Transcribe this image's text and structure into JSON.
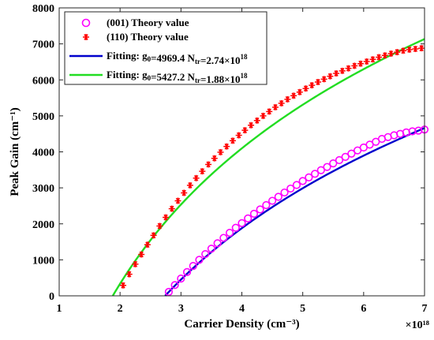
{
  "chart_data": {
    "type": "line",
    "xlabel": "Carrier Density (cm⁻³)",
    "ylabel": "Peak Gain (cm⁻¹)",
    "x_exponent_label": "×10¹⁸",
    "xlim": [
      1,
      7
    ],
    "ylim": [
      0,
      8000
    ],
    "xticks": [
      1,
      2,
      3,
      4,
      5,
      6,
      7
    ],
    "yticks": [
      0,
      1000,
      2000,
      3000,
      4000,
      5000,
      6000,
      7000,
      8000
    ],
    "grid": false,
    "legend_position": "top-left",
    "series": [
      {
        "name": "(001) Theory value",
        "kind": "marker-circle",
        "color": "#ff00ff",
        "x": [
          2.8,
          2.9,
          3.0,
          3.1,
          3.2,
          3.3,
          3.4,
          3.5,
          3.6,
          3.7,
          3.8,
          3.9,
          4.0,
          4.1,
          4.2,
          4.3,
          4.4,
          4.5,
          4.6,
          4.7,
          4.8,
          4.9,
          5.0,
          5.1,
          5.2,
          5.3,
          5.4,
          5.5,
          5.6,
          5.7,
          5.8,
          5.9,
          6.0,
          6.1,
          6.2,
          6.3,
          6.4,
          6.5,
          6.6,
          6.7,
          6.8,
          6.9,
          7.0
        ],
        "y": [
          110,
          300,
          480,
          660,
          830,
          1000,
          1160,
          1310,
          1460,
          1610,
          1750,
          1890,
          2020,
          2150,
          2280,
          2400,
          2520,
          2640,
          2750,
          2870,
          2980,
          3080,
          3190,
          3290,
          3390,
          3490,
          3580,
          3680,
          3770,
          3860,
          3950,
          4040,
          4120,
          4200,
          4280,
          4360,
          4410,
          4460,
          4500,
          4540,
          4570,
          4590,
          4620
        ]
      },
      {
        "name": "(110) Theory value",
        "kind": "marker-star",
        "color": "#ff0000",
        "x": [
          2.05,
          2.15,
          2.25,
          2.35,
          2.45,
          2.55,
          2.65,
          2.75,
          2.85,
          2.95,
          3.05,
          3.15,
          3.25,
          3.35,
          3.45,
          3.55,
          3.65,
          3.75,
          3.85,
          3.95,
          4.05,
          4.15,
          4.25,
          4.35,
          4.45,
          4.55,
          4.65,
          4.75,
          4.85,
          4.95,
          5.05,
          5.15,
          5.25,
          5.35,
          5.45,
          5.55,
          5.65,
          5.75,
          5.85,
          5.95,
          6.05,
          6.15,
          6.25,
          6.35,
          6.45,
          6.55,
          6.65,
          6.75,
          6.85,
          6.95
        ],
        "y": [
          290,
          600,
          880,
          1150,
          1420,
          1680,
          1940,
          2180,
          2420,
          2640,
          2860,
          3070,
          3270,
          3460,
          3650,
          3820,
          3990,
          4150,
          4310,
          4460,
          4600,
          4740,
          4870,
          5000,
          5120,
          5240,
          5350,
          5460,
          5560,
          5660,
          5760,
          5850,
          5940,
          6020,
          6100,
          6180,
          6250,
          6320,
          6390,
          6450,
          6510,
          6570,
          6630,
          6680,
          6730,
          6770,
          6810,
          6840,
          6860,
          6880
        ]
      },
      {
        "name": "Fitting: g₀=4969.4 N_tr=2.74×10¹⁸",
        "kind": "line",
        "color": "#0000cd",
        "g0": 4969.4,
        "Ntr": 2.74,
        "x_range": [
          2.74,
          7
        ]
      },
      {
        "name": "Fitting: g₀=5427.2 N_tr=1.88×10¹⁸",
        "kind": "line",
        "color": "#22dd22",
        "g0": 5427.2,
        "Ntr": 1.88,
        "x_range": [
          1.88,
          7
        ]
      }
    ],
    "legend": [
      {
        "label_main": "(001) Theory value",
        "sym": "circle",
        "color": "#ff00ff"
      },
      {
        "label_main": "(110) Theory value",
        "sym": "star",
        "color": "#ff0000"
      },
      {
        "label_pre": "Fitting: g",
        "sub1": "0",
        "mid": "=4969.4 N",
        "sub2": "tr",
        "post": "=2.74×10",
        "sup": "18",
        "sym": "line",
        "color": "#0000cd"
      },
      {
        "label_pre": "Fitting: g",
        "sub1": "0",
        "mid": "=5427.2 N",
        "sub2": "tr",
        "post": "=1.88×10",
        "sup": "18",
        "sym": "line",
        "color": "#22dd22"
      }
    ]
  }
}
